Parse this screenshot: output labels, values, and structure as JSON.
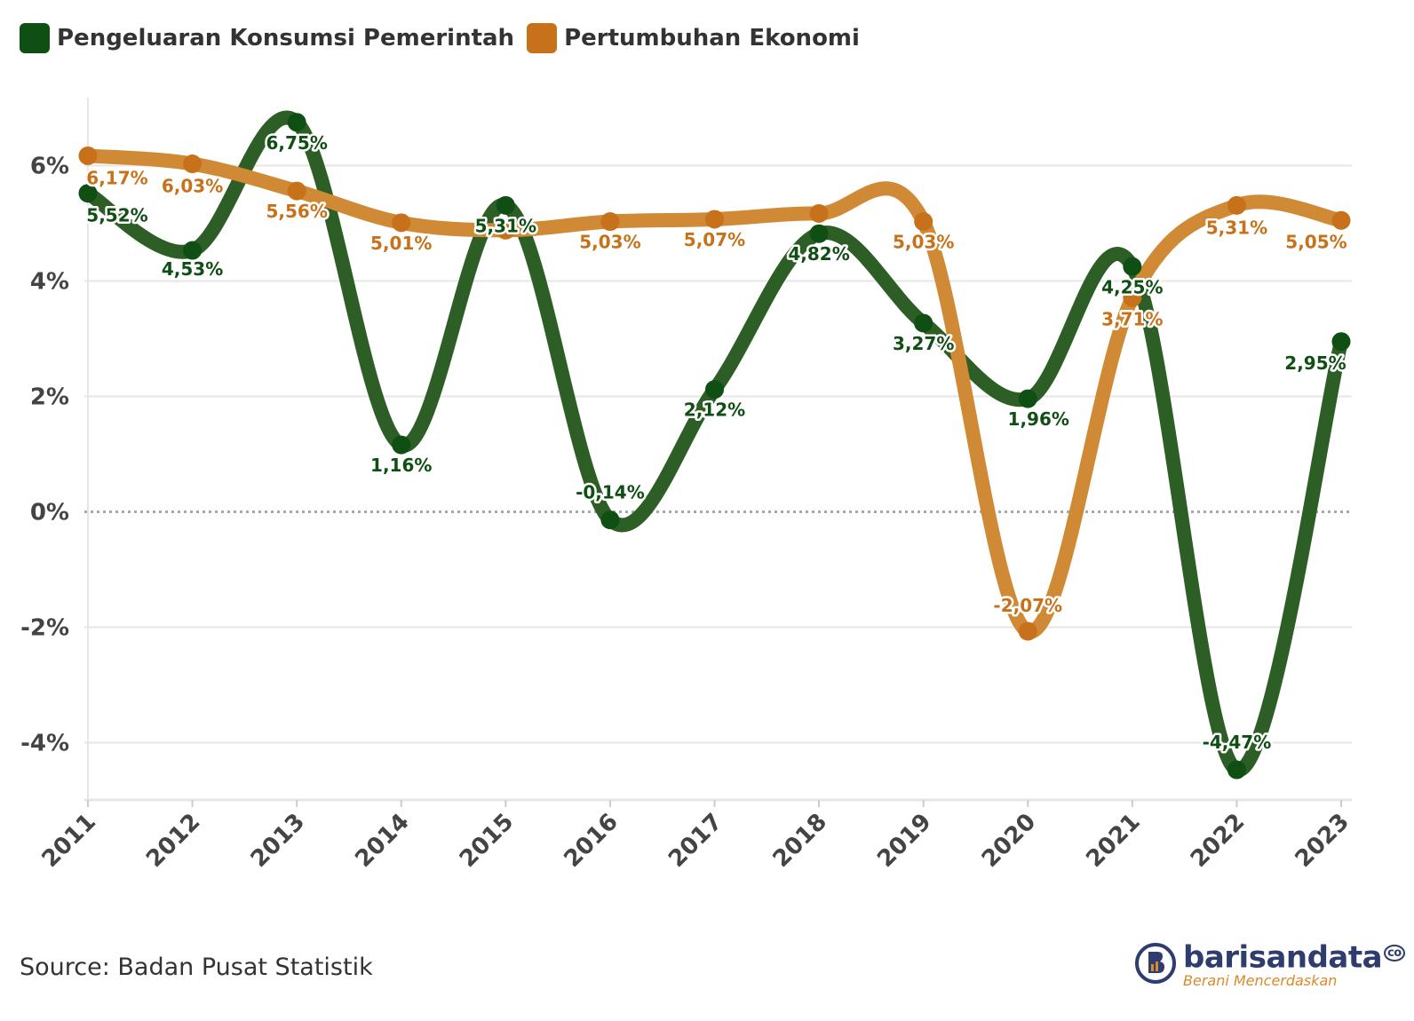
{
  "legend": {
    "items": [
      {
        "label": "Pengeluaran Konsumsi Pemerintah",
        "color": "#0f4f14"
      },
      {
        "label": "Pertumbuhan Ekonomi",
        "color": "#c7721a"
      }
    ]
  },
  "chart_data": {
    "type": "line",
    "title": "",
    "xlabel": "",
    "ylabel": "",
    "categories": [
      "2011",
      "2012",
      "2013",
      "2014",
      "2015",
      "2016",
      "2017",
      "2018",
      "2019",
      "2020",
      "2021",
      "2022",
      "2023"
    ],
    "ylim": [
      -5,
      7
    ],
    "yticks": [
      -4,
      -2,
      0,
      2,
      4,
      6
    ],
    "ytick_labels": [
      "-4%",
      "-2%",
      "0%",
      "2%",
      "4%",
      "6%"
    ],
    "grid": true,
    "legend_position": "top-left",
    "series": [
      {
        "name": "Pengeluaran Konsumsi Pemerintah",
        "line_color": "#2d5e25",
        "marker_color": "#0f4f14",
        "label_color": "#0f4f14",
        "values": [
          5.52,
          4.53,
          6.75,
          1.16,
          5.31,
          -0.14,
          2.12,
          4.82,
          3.27,
          1.96,
          4.25,
          -4.47,
          2.95
        ],
        "labels": [
          "5,52%",
          "4,53%",
          "6,75%",
          "1,16%",
          "5,31%",
          "-0,14%",
          "2,12%",
          "4,82%",
          "3,27%",
          "1,96%",
          "4,25%",
          "-4,47%",
          "2,95%"
        ]
      },
      {
        "name": "Pertumbuhan Ekonomi",
        "line_color": "#d08a35",
        "marker_color": "#c7721a",
        "label_color": "#c7721a",
        "values": [
          6.17,
          6.03,
          5.56,
          5.01,
          4.88,
          5.03,
          5.07,
          5.17,
          5.03,
          -2.07,
          3.71,
          5.31,
          5.05
        ],
        "labels": [
          "6,17%",
          "6,03%",
          "5,56%",
          "5,01%",
          "",
          "5,03%",
          "5,07%",
          "",
          "5,03%",
          "-2,07%",
          "3,71%",
          "5,31%",
          "5,05%"
        ]
      }
    ]
  },
  "source_text": "Source: Badan Pusat Statistik",
  "brand": {
    "name": "barisandata",
    "suffix": "co",
    "tagline": "Berani Mencerdaskan"
  }
}
